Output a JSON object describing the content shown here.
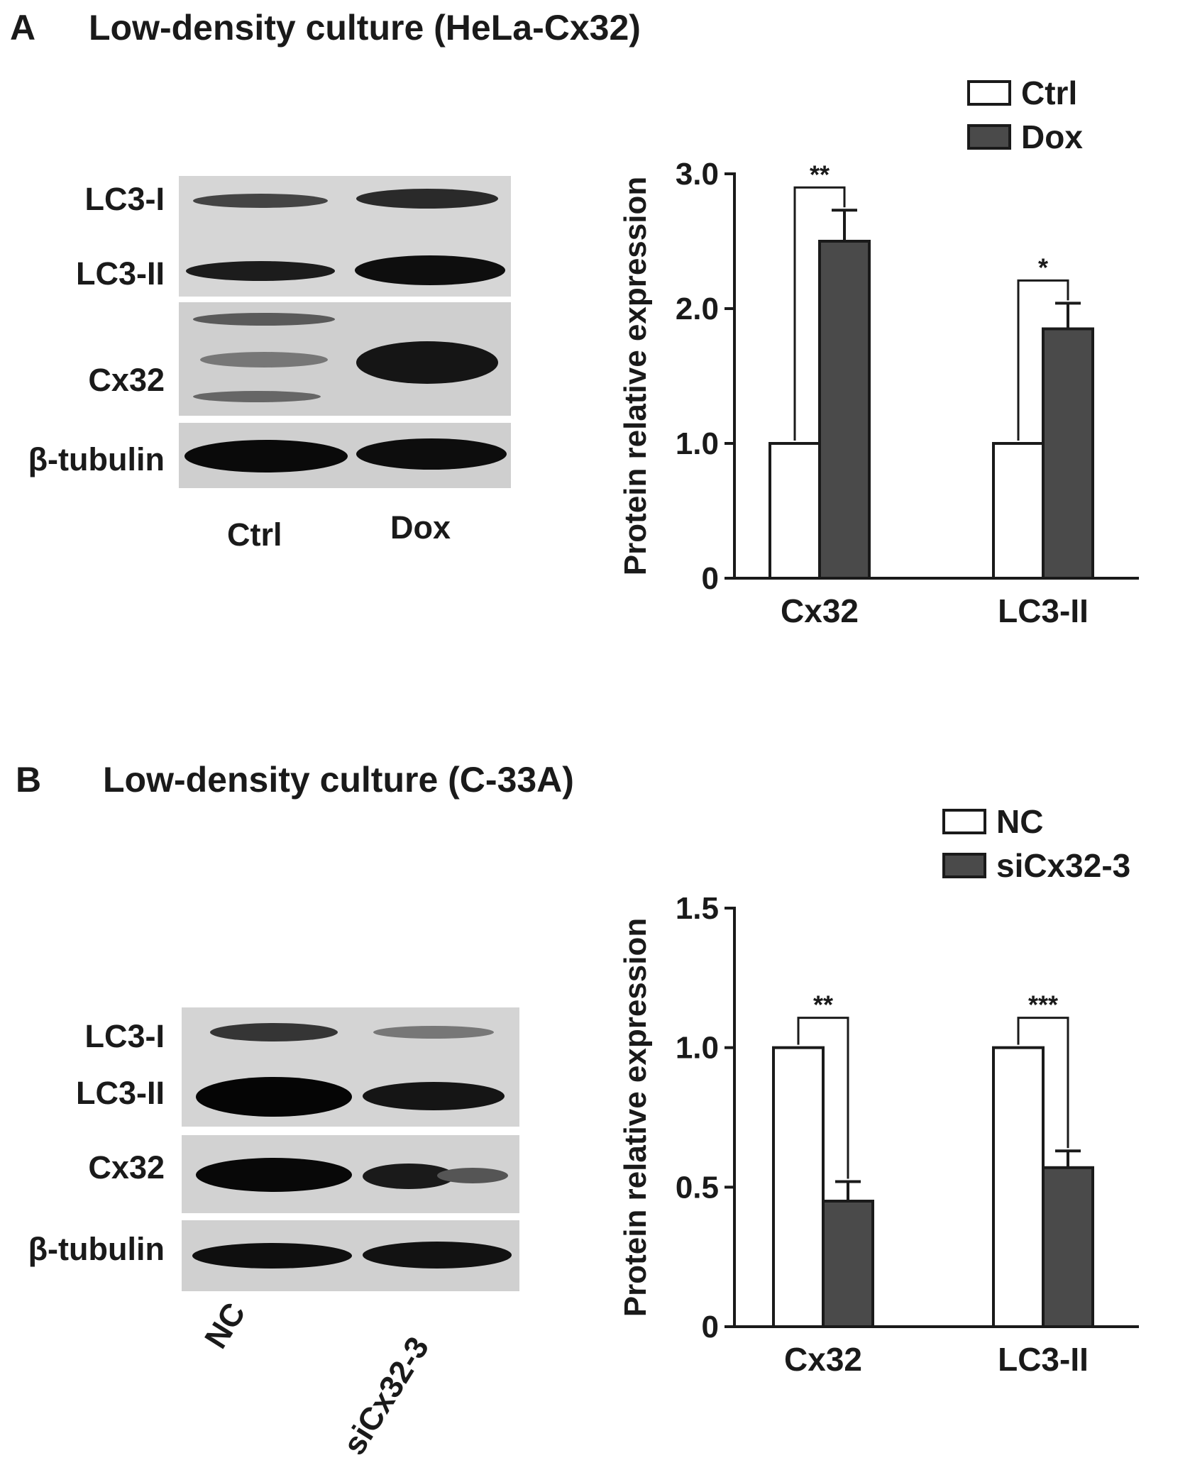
{
  "panel_a": {
    "letter": "A",
    "title": "Low-density culture (HeLa-Cx32)",
    "blot": {
      "row_labels": [
        "LC3-I",
        "LC3-II",
        "Cx32",
        "β-tubulin"
      ],
      "lane_labels": [
        "Ctrl",
        "Dox"
      ]
    }
  },
  "panel_b": {
    "letter": "B",
    "title": "Low-density culture (C-33A)",
    "blot": {
      "row_labels": [
        "LC3-I",
        "LC3-II",
        "Cx32",
        "β-tubulin"
      ],
      "lane_labels": [
        "NC",
        "siCx32-3"
      ]
    }
  },
  "chart_data": [
    {
      "type": "bar",
      "ylabel": "Protein relative expression",
      "categories": [
        "Cx32",
        "LC3-II"
      ],
      "ylim": [
        0,
        3.0
      ],
      "yticks": [
        "0",
        "1.0",
        "2.0",
        "3.0"
      ],
      "ytick_values": [
        0,
        1.0,
        2.0,
        3.0
      ],
      "legend_position": "top-right",
      "series": [
        {
          "name": "Ctrl",
          "values": [
            1.0,
            1.0
          ],
          "errors": [
            0,
            0
          ],
          "color": "#ffffff"
        },
        {
          "name": "Dox",
          "values": [
            2.5,
            1.85
          ],
          "errors": [
            0.23,
            0.19
          ],
          "color": "#4a4a4a"
        }
      ],
      "significance": [
        "**",
        "*"
      ]
    },
    {
      "type": "bar",
      "ylabel": "Protein relative expression",
      "categories": [
        "Cx32",
        "LC3-II"
      ],
      "ylim": [
        0,
        1.5
      ],
      "yticks": [
        "0",
        "0.5",
        "1.0",
        "1.5"
      ],
      "ytick_values": [
        0,
        0.5,
        1.0,
        1.5
      ],
      "legend_position": "top-right",
      "series": [
        {
          "name": "NC",
          "values": [
            1.0,
            1.0
          ],
          "errors": [
            0,
            0
          ],
          "color": "#ffffff"
        },
        {
          "name": "siCx32-3",
          "values": [
            0.45,
            0.57
          ],
          "errors": [
            0.07,
            0.06
          ],
          "color": "#4a4a4a"
        }
      ],
      "significance": [
        "**",
        "***"
      ]
    }
  ]
}
